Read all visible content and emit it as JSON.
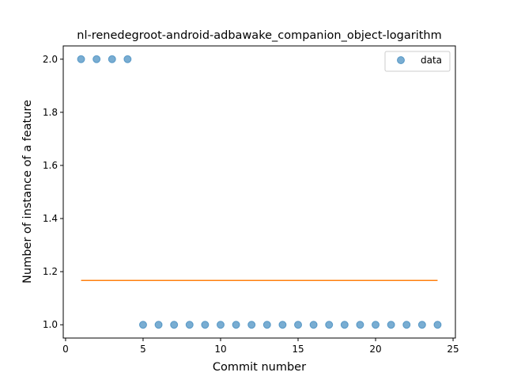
{
  "chart_data": {
    "type": "scatter",
    "title": "nl-renedegroot-android-adbawake_companion_object-logarithm",
    "xlabel": "Commit number",
    "ylabel": "Number of instance of a feature",
    "xlim": [
      -0.15,
      25.15
    ],
    "ylim": [
      0.95,
      2.05
    ],
    "xticks": [
      0,
      5,
      10,
      15,
      20,
      25
    ],
    "yticks": [
      1.0,
      1.2,
      1.4,
      1.6,
      1.8,
      2.0
    ],
    "xtick_labels": [
      "0",
      "5",
      "10",
      "15",
      "20",
      "25"
    ],
    "ytick_labels": [
      "1.0",
      "1.2",
      "1.4",
      "1.6",
      "1.8",
      "2.0"
    ],
    "grid": false,
    "legend_position": "top-right",
    "series": [
      {
        "name": "data",
        "kind": "scatter",
        "color": "#1f77b4",
        "x": [
          1,
          2,
          3,
          4,
          5,
          6,
          7,
          8,
          9,
          10,
          11,
          12,
          13,
          14,
          15,
          16,
          17,
          18,
          19,
          20,
          21,
          22,
          23,
          24
        ],
        "y": [
          2,
          2,
          2,
          2,
          1,
          1,
          1,
          1,
          1,
          1,
          1,
          1,
          1,
          1,
          1,
          1,
          1,
          1,
          1,
          1,
          1,
          1,
          1,
          1
        ]
      },
      {
        "kind": "line",
        "color": "#ff7f0e",
        "x": [
          1,
          24
        ],
        "y": [
          1.1667,
          1.1667
        ]
      }
    ]
  }
}
